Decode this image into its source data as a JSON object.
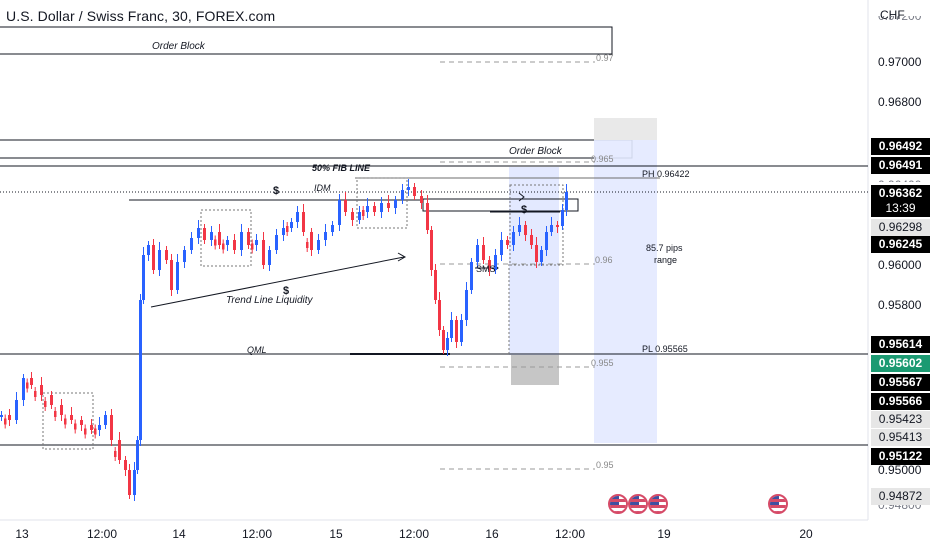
{
  "header": {
    "title": "U.S. Dollar / Swiss Franc, 30, FOREX.com",
    "currency": "CHF"
  },
  "price_axis": {
    "ticks": [
      "0.97000",
      "0.96800",
      "0.96000",
      "0.95800",
      "0.95000"
    ],
    "partial_ticks": [
      "0.97200",
      "0.96400",
      "0.94800"
    ]
  },
  "price_badges": [
    {
      "label": "0.96492",
      "bg": "#000000",
      "fg": "#ffffff"
    },
    {
      "label": "0.96491",
      "bg": "#000000",
      "fg": "#ffffff"
    },
    {
      "label": "0.96362",
      "bg": "#000000",
      "fg": "#ffffff"
    },
    {
      "label": "13:39",
      "bg": "#000000",
      "fg": "#ffffff"
    },
    {
      "label": "0.96298",
      "bg": "#e6e6e6",
      "fg": "#131722"
    },
    {
      "label": "0.96245",
      "bg": "#000000",
      "fg": "#ffffff"
    },
    {
      "label": "0.95614",
      "bg": "#000000",
      "fg": "#ffffff"
    },
    {
      "label": "0.95602",
      "bg": "#1b9a72",
      "fg": "#ffffff"
    },
    {
      "label": "0.95567",
      "bg": "#000000",
      "fg": "#ffffff"
    },
    {
      "label": "0.95566",
      "bg": "#000000",
      "fg": "#ffffff"
    },
    {
      "label": "0.95423",
      "bg": "#e6e6e6",
      "fg": "#131722"
    },
    {
      "label": "0.95413",
      "bg": "#e6e6e6",
      "fg": "#131722"
    },
    {
      "label": "0.95122",
      "bg": "#000000",
      "fg": "#ffffff"
    },
    {
      "label": "0.94872",
      "bg": "#e6e6e6",
      "fg": "#131722"
    }
  ],
  "time_axis": {
    "ticks": [
      "13",
      "12:00",
      "14",
      "12:00",
      "15",
      "12:00",
      "16",
      "12:00",
      "19",
      "20"
    ]
  },
  "annotations": {
    "order_block_top": "Order Block",
    "order_block_right": "Order Block",
    "fib_line": "50% FIB LINE",
    "idm": "IDM",
    "dollar": "$",
    "trend_line_liquidity": "Trend Line Liquidity",
    "qml": "QML",
    "sms": "SMS",
    "ph": "PH 0.96422",
    "pl": "PL 0.95565",
    "pips_line1": "85.7 pips",
    "pips_line2": "range",
    "fib_97": "0.97",
    "fib_965": "0.965",
    "fib_96": "0.96",
    "fib_955": "0.955",
    "fib_95": "0.95"
  },
  "colors": {
    "up": "#2962ff",
    "down": "#f23645",
    "text": "#131722"
  },
  "icons": {
    "events": "us-flag-icon"
  }
}
